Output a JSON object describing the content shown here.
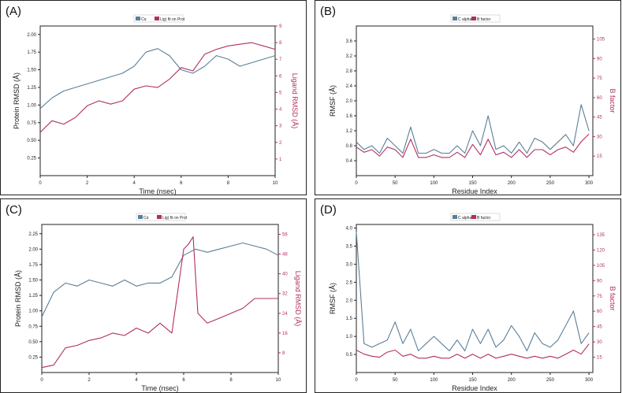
{
  "colors": {
    "blue": "#5a7f98",
    "red": "#b03060",
    "axis": "#222222"
  },
  "chart_data": [
    {
      "panel_label": "(A)",
      "type": "line",
      "legend": [
        "Cα",
        "Lig) fit on Prot"
      ],
      "xlabel": "Time (nsec)",
      "ylabel_left": "Protein RMSD (Å)",
      "ylabel_right": "Ligand RMSD (Å)",
      "xlim": [
        0,
        10
      ],
      "ylim_left": [
        0,
        2.12
      ],
      "ylim_right": [
        0,
        9
      ],
      "xticks": [
        "0",
        "2",
        "4",
        "6",
        "8",
        "10"
      ],
      "yticks_left": [
        "0.25",
        "0.50",
        "0.75",
        "1.00",
        "1.25",
        "1.50",
        "1.75",
        "2.00"
      ],
      "yticks_right": [
        "1",
        "2",
        "3",
        "4",
        "5",
        "6",
        "7",
        "8",
        "9"
      ],
      "series": [
        {
          "name": "Cα",
          "axis": "left",
          "x": [
            0,
            0.5,
            1,
            1.5,
            2,
            2.5,
            3,
            3.5,
            4,
            4.5,
            5,
            5.5,
            6,
            6.5,
            7,
            7.5,
            8,
            8.5,
            9,
            9.5,
            10
          ],
          "values": [
            0.95,
            1.1,
            1.2,
            1.25,
            1.3,
            1.35,
            1.4,
            1.45,
            1.55,
            1.75,
            1.8,
            1.7,
            1.5,
            1.45,
            1.55,
            1.7,
            1.65,
            1.55,
            1.6,
            1.65,
            1.7
          ]
        },
        {
          "name": "Lig) fit on Prot",
          "axis": "right",
          "x": [
            0,
            0.5,
            1,
            1.5,
            2,
            2.5,
            3,
            3.5,
            4,
            4.5,
            5,
            5.5,
            6,
            6.5,
            7,
            7.5,
            8,
            8.5,
            9,
            9.5,
            10
          ],
          "values": [
            2.6,
            3.3,
            3.1,
            3.5,
            4.2,
            4.5,
            4.3,
            4.5,
            5.2,
            5.4,
            5.3,
            5.8,
            6.5,
            6.3,
            7.3,
            7.6,
            7.8,
            7.9,
            8.0,
            7.8,
            7.6
          ]
        }
      ]
    },
    {
      "panel_label": "(B)",
      "type": "line",
      "legend": [
        "C alphas",
        "B factor"
      ],
      "xlabel": "Residue Index",
      "ylabel_left": "RMSF (Å)",
      "ylabel_right": "B factor",
      "xlim": [
        0,
        305
      ],
      "ylim_left": [
        0,
        4.0
      ],
      "ylim_right": [
        0,
        115
      ],
      "xticks": [
        "0",
        "50",
        "100",
        "150",
        "200",
        "250",
        "300"
      ],
      "yticks_left": [
        "0.4",
        "0.8",
        "1.2",
        "1.6",
        "2.0",
        "2.4",
        "2.8",
        "3.2",
        "3.6"
      ],
      "yticks_right": [
        "15",
        "30",
        "45",
        "60",
        "75",
        "90",
        "105"
      ],
      "series": [
        {
          "name": "C alphas",
          "axis": "left",
          "x": [
            0,
            10,
            20,
            30,
            40,
            50,
            60,
            70,
            80,
            90,
            100,
            110,
            120,
            130,
            140,
            150,
            160,
            170,
            180,
            190,
            200,
            210,
            220,
            230,
            240,
            250,
            260,
            270,
            280,
            290,
            300
          ],
          "values": [
            0.9,
            0.7,
            0.8,
            0.6,
            1.0,
            0.8,
            0.6,
            1.3,
            0.6,
            0.6,
            0.7,
            0.6,
            0.6,
            0.8,
            0.6,
            1.2,
            0.8,
            1.6,
            0.7,
            0.8,
            0.6,
            0.9,
            0.6,
            1.0,
            0.9,
            0.7,
            0.9,
            1.1,
            0.8,
            1.9,
            1.2
          ]
        },
        {
          "name": "B factor",
          "axis": "right",
          "x": [
            0,
            10,
            20,
            30,
            40,
            50,
            60,
            70,
            80,
            90,
            100,
            110,
            120,
            130,
            140,
            150,
            160,
            170,
            180,
            190,
            200,
            210,
            220,
            230,
            240,
            250,
            260,
            270,
            280,
            290,
            300
          ],
          "values": [
            22,
            18,
            20,
            15,
            22,
            20,
            14,
            28,
            14,
            14,
            16,
            14,
            14,
            18,
            14,
            24,
            16,
            28,
            16,
            18,
            14,
            20,
            14,
            20,
            20,
            16,
            20,
            22,
            18,
            26,
            32
          ]
        }
      ]
    },
    {
      "panel_label": "(C)",
      "type": "line",
      "legend": [
        "Cα",
        "Lig) fit on Prot"
      ],
      "xlabel": "Time (nsec)",
      "ylabel_left": "Protein RMSD (Å)",
      "ylabel_right": "Ligand RMSD (Å)",
      "xlim": [
        0,
        10
      ],
      "ylim_left": [
        0,
        2.4
      ],
      "ylim_right": [
        0,
        60
      ],
      "xticks": [
        "0",
        "2",
        "4",
        "6",
        "8",
        "10"
      ],
      "yticks_left": [
        "0.25",
        "0.50",
        "0.75",
        "1.00",
        "1.25",
        "1.50",
        "1.75",
        "2.00",
        "2.25"
      ],
      "yticks_right": [
        "8",
        "16",
        "24",
        "32",
        "40",
        "48",
        "56"
      ],
      "series": [
        {
          "name": "Cα",
          "axis": "left",
          "x": [
            0,
            0.5,
            1,
            1.5,
            2,
            2.5,
            3,
            3.5,
            4,
            4.5,
            5,
            5.5,
            6,
            6.5,
            7,
            7.5,
            8,
            8.5,
            9,
            9.5,
            10
          ],
          "values": [
            0.9,
            1.3,
            1.45,
            1.4,
            1.5,
            1.45,
            1.4,
            1.5,
            1.4,
            1.45,
            1.45,
            1.55,
            1.9,
            2.0,
            1.95,
            2.0,
            2.05,
            2.1,
            2.05,
            2.0,
            1.9
          ]
        },
        {
          "name": "Lig) fit on Prot",
          "axis": "right",
          "x": [
            0,
            0.5,
            1,
            1.5,
            2,
            2.5,
            3,
            3.5,
            4,
            4.5,
            5,
            5.5,
            6,
            6.2,
            6.4,
            6.6,
            7,
            7.5,
            8,
            8.5,
            9,
            9.5,
            10
          ],
          "values": [
            2,
            3,
            10,
            11,
            13,
            14,
            16,
            15,
            18,
            16,
            20,
            16,
            50,
            52,
            55,
            24,
            20,
            22,
            24,
            26,
            30,
            30,
            30
          ]
        }
      ]
    },
    {
      "panel_label": "(D)",
      "type": "line",
      "legend": [
        "C alphas",
        "B factor"
      ],
      "xlabel": "Residue Index",
      "ylabel_left": "RMSF (Å)",
      "ylabel_right": "B factor",
      "xlim": [
        0,
        305
      ],
      "ylim_left": [
        0,
        4.1
      ],
      "ylim_right": [
        0,
        145
      ],
      "xticks": [
        "0",
        "50",
        "100",
        "150",
        "200",
        "250",
        "300"
      ],
      "yticks_left": [
        "0.5",
        "1.0",
        "1.5",
        "2.0",
        "2.5",
        "3.0",
        "3.5",
        "4.0"
      ],
      "yticks_right": [
        "15",
        "30",
        "45",
        "60",
        "75",
        "90",
        "105",
        "120",
        "135"
      ],
      "series": [
        {
          "name": "C alphas",
          "axis": "left",
          "x": [
            0,
            10,
            20,
            30,
            40,
            50,
            60,
            70,
            80,
            90,
            100,
            110,
            120,
            130,
            140,
            150,
            160,
            170,
            180,
            190,
            200,
            210,
            220,
            230,
            240,
            250,
            260,
            270,
            280,
            290,
            300
          ],
          "values": [
            3.9,
            0.8,
            0.7,
            0.8,
            0.9,
            1.4,
            0.8,
            1.2,
            0.6,
            0.8,
            1.0,
            0.8,
            0.6,
            0.9,
            0.6,
            1.2,
            0.8,
            1.2,
            0.7,
            0.9,
            1.3,
            1.0,
            0.6,
            1.1,
            0.8,
            0.7,
            0.9,
            1.3,
            1.7,
            0.8,
            1.1
          ]
        },
        {
          "name": "B factor",
          "axis": "right",
          "x": [
            0,
            10,
            20,
            30,
            40,
            50,
            60,
            70,
            80,
            90,
            100,
            110,
            120,
            130,
            140,
            150,
            160,
            170,
            180,
            190,
            200,
            210,
            220,
            230,
            240,
            250,
            260,
            270,
            280,
            290,
            300
          ],
          "values": [
            22,
            18,
            16,
            15,
            20,
            22,
            16,
            18,
            14,
            14,
            16,
            14,
            14,
            18,
            14,
            18,
            14,
            18,
            14,
            16,
            18,
            16,
            14,
            16,
            14,
            16,
            14,
            18,
            22,
            18,
            28
          ]
        }
      ]
    }
  ]
}
